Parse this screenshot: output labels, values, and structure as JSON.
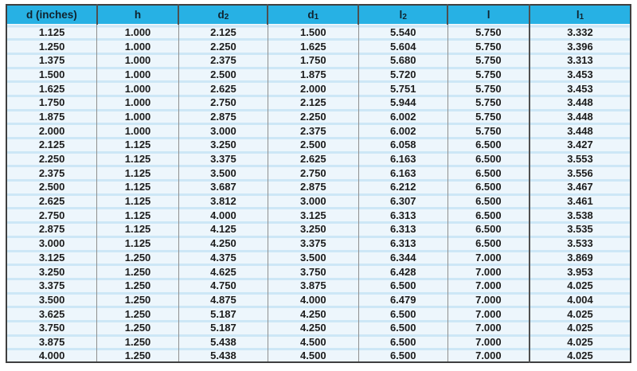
{
  "table": {
    "columns": [
      {
        "name": "d-inches",
        "base": "d (inches)",
        "sub": ""
      },
      {
        "name": "h",
        "base": "h",
        "sub": ""
      },
      {
        "name": "d2",
        "base": "d",
        "sub": "2"
      },
      {
        "name": "d1",
        "base": "d",
        "sub": "1"
      },
      {
        "name": "l2",
        "base": "l",
        "sub": "2"
      },
      {
        "name": "l",
        "base": "l",
        "sub": ""
      },
      {
        "name": "l1",
        "base": "l",
        "sub": "1"
      }
    ],
    "col_widths_pct": [
      14.5,
      13.1,
      14.3,
      14.5,
      14.3,
      13.1,
      16.2
    ],
    "dark_separator_cols": [
      6
    ],
    "rows": [
      [
        "1.125",
        "1.000",
        "2.125",
        "1.500",
        "5.540",
        "5.750",
        "3.332"
      ],
      [
        "1.250",
        "1.000",
        "2.250",
        "1.625",
        "5.604",
        "5.750",
        "3.396"
      ],
      [
        "1.375",
        "1.000",
        "2.375",
        "1.750",
        "5.680",
        "5.750",
        "3.313"
      ],
      [
        "1.500",
        "1.000",
        "2.500",
        "1.875",
        "5.720",
        "5.750",
        "3.453"
      ],
      [
        "1.625",
        "1.000",
        "2.625",
        "2.000",
        "5.751",
        "5.750",
        "3.453"
      ],
      [
        "1.750",
        "1.000",
        "2.750",
        "2.125",
        "5.944",
        "5.750",
        "3.448"
      ],
      [
        "1.875",
        "1.000",
        "2.875",
        "2.250",
        "6.002",
        "5.750",
        "3.448"
      ],
      [
        "2.000",
        "1.000",
        "3.000",
        "2.375",
        "6.002",
        "5.750",
        "3.448"
      ],
      [
        "2.125",
        "1.125",
        "3.250",
        "2.500",
        "6.058",
        "6.500",
        "3.427"
      ],
      [
        "2.250",
        "1.125",
        "3.375",
        "2.625",
        "6.163",
        "6.500",
        "3.553"
      ],
      [
        "2.375",
        "1.125",
        "3.500",
        "2.750",
        "6.163",
        "6.500",
        "3.556"
      ],
      [
        "2.500",
        "1.125",
        "3.687",
        "2.875",
        "6.212",
        "6.500",
        "3.467"
      ],
      [
        "2.625",
        "1.125",
        "3.812",
        "3.000",
        "6.307",
        "6.500",
        "3.461"
      ],
      [
        "2.750",
        "1.125",
        "4.000",
        "3.125",
        "6.313",
        "6.500",
        "3.538"
      ],
      [
        "2.875",
        "1.125",
        "4.125",
        "3.250",
        "6.313",
        "6.500",
        "3.535"
      ],
      [
        "3.000",
        "1.125",
        "4.250",
        "3.375",
        "6.313",
        "6.500",
        "3.533"
      ],
      [
        "3.125",
        "1.250",
        "4.375",
        "3.500",
        "6.344",
        "7.000",
        "3.869"
      ],
      [
        "3.250",
        "1.250",
        "4.625",
        "3.750",
        "6.428",
        "7.000",
        "3.953"
      ],
      [
        "3.375",
        "1.250",
        "4.750",
        "3.875",
        "6.500",
        "7.000",
        "4.025"
      ],
      [
        "3.500",
        "1.250",
        "4.875",
        "4.000",
        "6.479",
        "7.000",
        "4.004"
      ],
      [
        "3.625",
        "1.250",
        "5.187",
        "4.250",
        "6.500",
        "7.000",
        "4.025"
      ],
      [
        "3.750",
        "1.250",
        "5.187",
        "4.250",
        "6.500",
        "7.000",
        "4.025"
      ],
      [
        "3.875",
        "1.250",
        "5.438",
        "4.500",
        "6.500",
        "7.000",
        "4.025"
      ],
      [
        "4.000",
        "1.250",
        "5.438",
        "4.500",
        "6.500",
        "7.000",
        "4.025"
      ]
    ]
  },
  "colors": {
    "header_bg": "#27b1e4",
    "header_text": "#10232e",
    "row_bg": "#edf6fc",
    "row_stripe": "#cde7f6",
    "grid_line": "#8f8f8f",
    "dark_line": "#4f4f4f",
    "outer_border": "#3f3f3f",
    "text": "#1c1c1c"
  }
}
